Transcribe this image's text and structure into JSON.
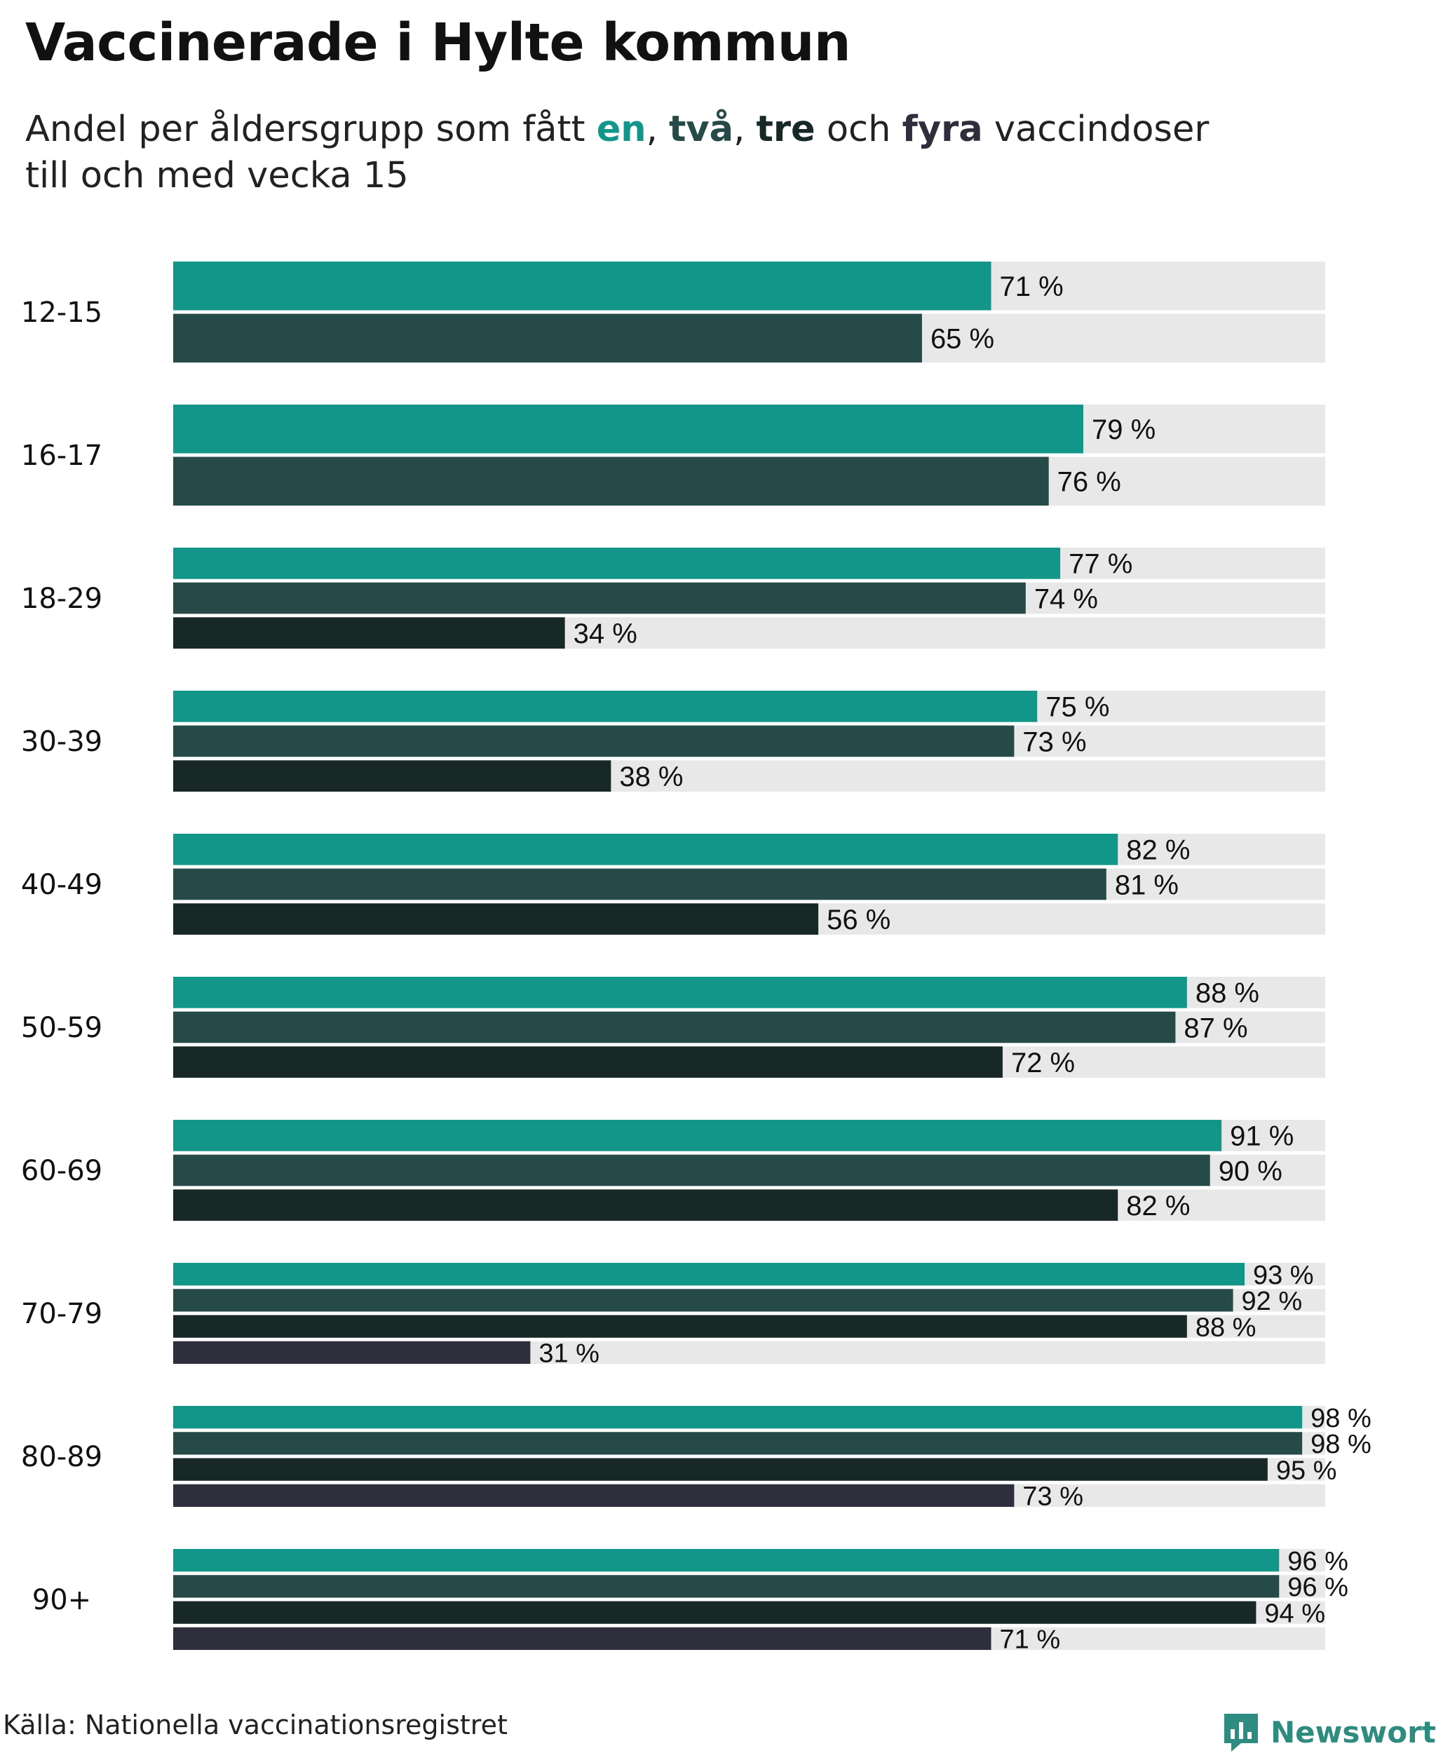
{
  "title": "Vaccinerade i Hylte kommun",
  "subtitle": {
    "prefix": "Andel per åldersgrupp som fått ",
    "w1": "en",
    "sep1": ", ",
    "w2": "två",
    "sep2": ", ",
    "w3": "tre",
    "mid": " och ",
    "w4": "fyra",
    "suffix": " vaccindoser",
    "line2": "till och med vecka 15"
  },
  "source": "Källa: Nationella vaccinationsregistret",
  "logo": {
    "text": "Newsworthy",
    "icon": "newsworthy-chart-icon"
  },
  "colors": {
    "dose1": "#13968a",
    "dose2": "#264a48",
    "dose3": "#172826",
    "dose4": "#2e2e3c",
    "track": "#e8e8e8",
    "label": "#111111",
    "brand": "#2d8b7f"
  },
  "chart_data": {
    "type": "bar",
    "orientation": "horizontal",
    "title": "Vaccinerade i Hylte kommun",
    "xlim": [
      0,
      100
    ],
    "unit": "%",
    "legend": "inline in subtitle",
    "series_names": [
      "en",
      "två",
      "tre",
      "fyra"
    ],
    "categories": [
      "12-15",
      "16-17",
      "18-29",
      "30-39",
      "40-49",
      "50-59",
      "60-69",
      "70-79",
      "80-89",
      "90+"
    ],
    "groups": [
      {
        "category": "12-15",
        "values": [
          71,
          65
        ]
      },
      {
        "category": "16-17",
        "values": [
          79,
          76
        ]
      },
      {
        "category": "18-29",
        "values": [
          77,
          74,
          34
        ]
      },
      {
        "category": "30-39",
        "values": [
          75,
          73,
          38
        ]
      },
      {
        "category": "40-49",
        "values": [
          82,
          81,
          56
        ]
      },
      {
        "category": "50-59",
        "values": [
          88,
          87,
          72
        ]
      },
      {
        "category": "60-69",
        "values": [
          91,
          90,
          82
        ]
      },
      {
        "category": "70-79",
        "values": [
          93,
          92,
          88,
          31
        ]
      },
      {
        "category": "80-89",
        "values": [
          98,
          98,
          95,
          73
        ]
      },
      {
        "category": "90+",
        "values": [
          96,
          96,
          94,
          71
        ]
      }
    ]
  }
}
